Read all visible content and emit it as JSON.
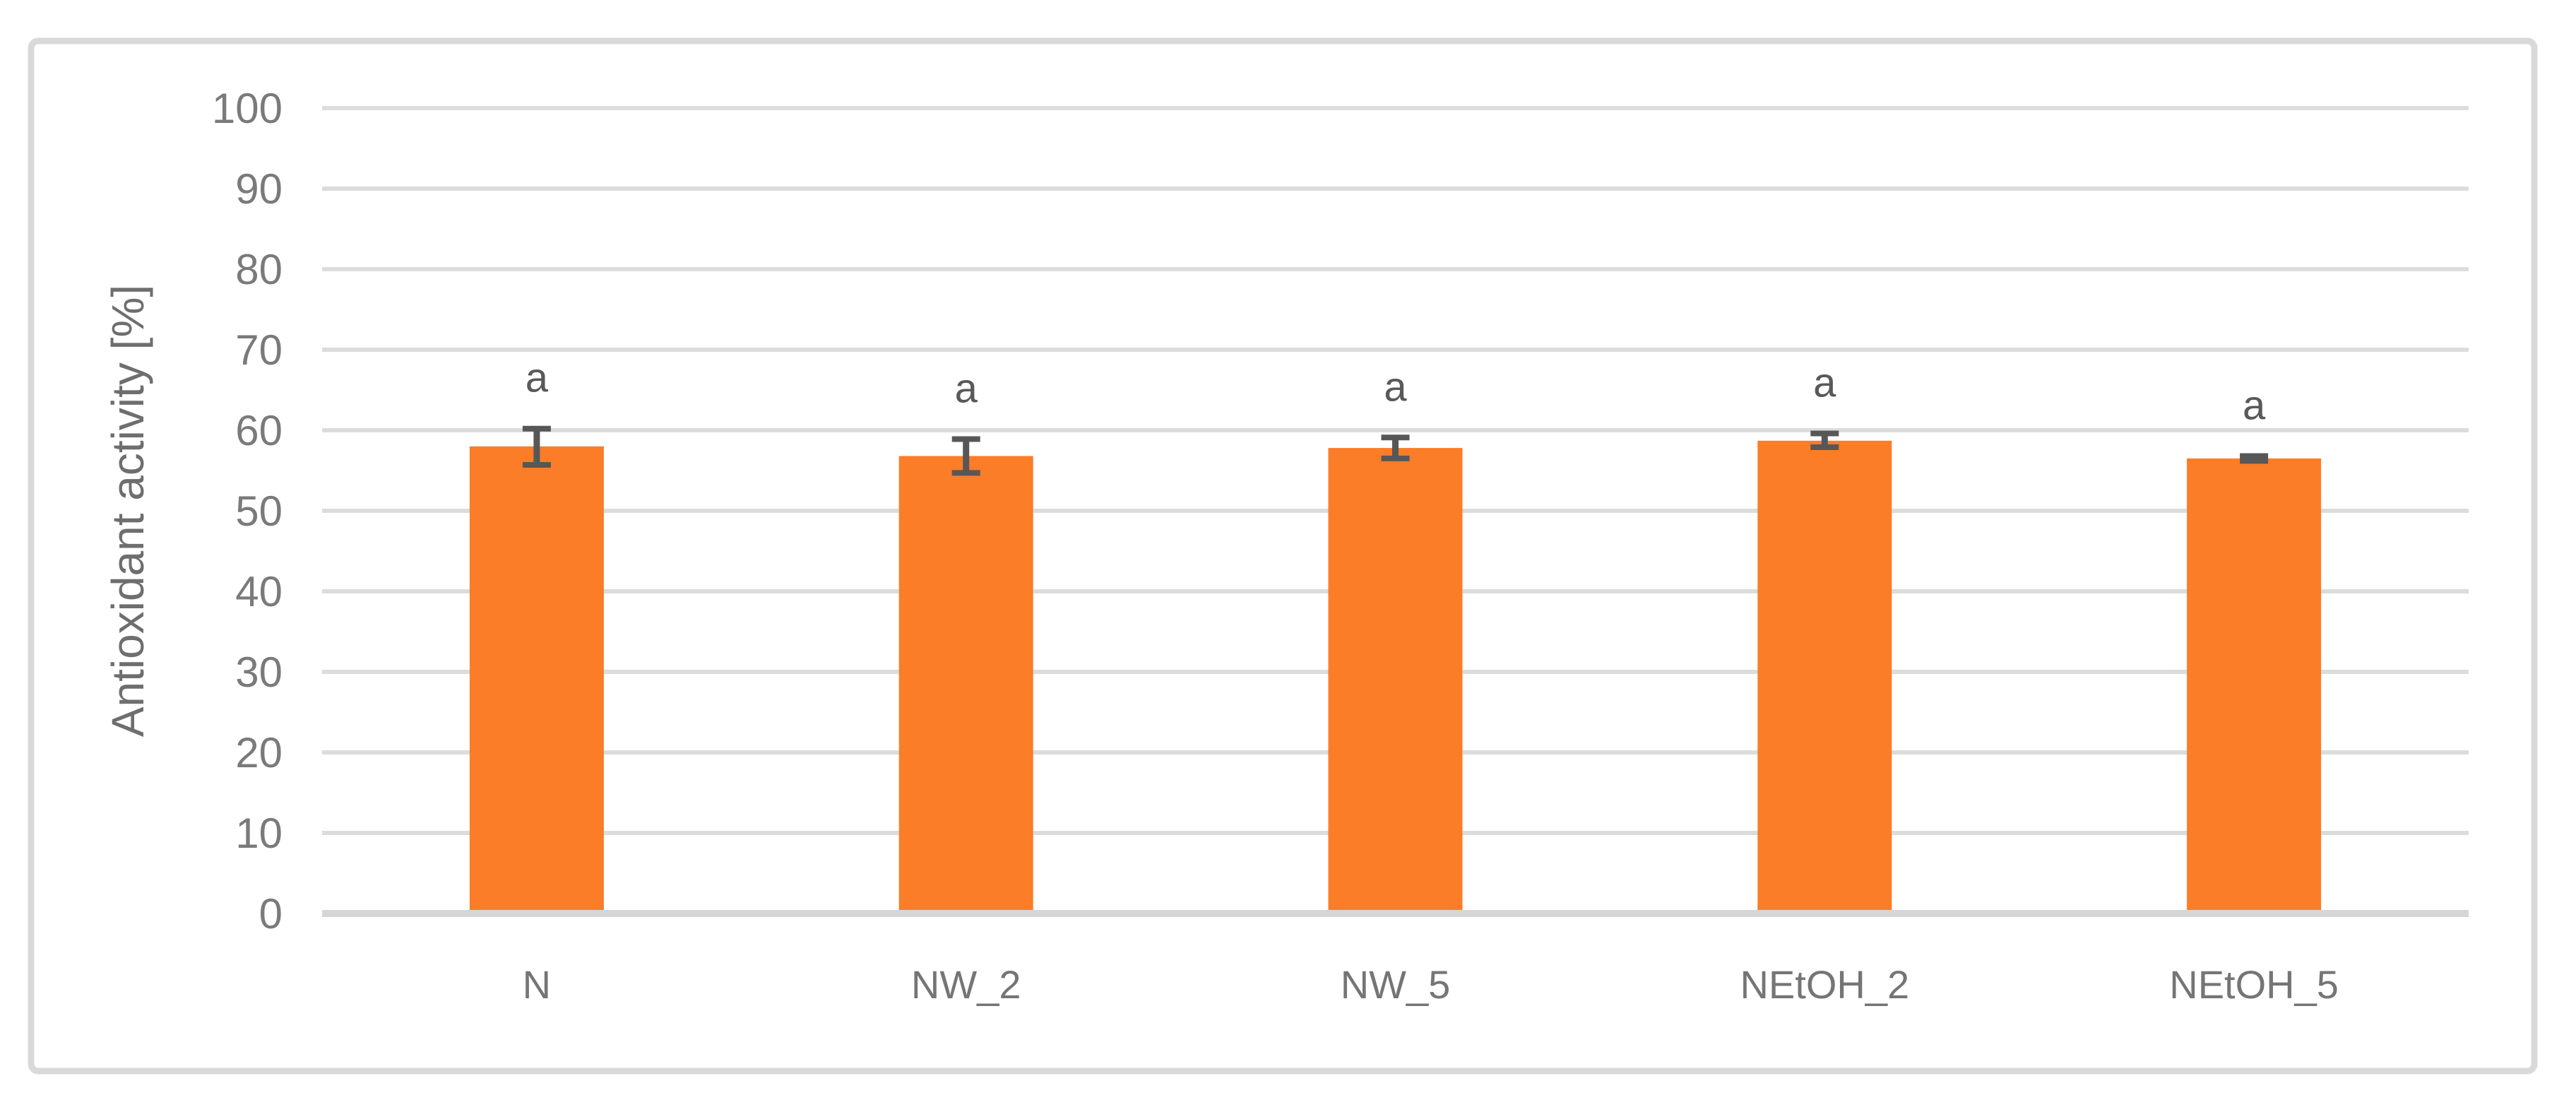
{
  "figure": {
    "background_color": "#FFFFFF",
    "border_color": "#D9D9D9"
  },
  "chart_data": {
    "type": "bar",
    "title": "",
    "xlabel": "",
    "ylabel": "Antioxidant activity [%]",
    "categories": [
      "N",
      "NW_2",
      "NW_5",
      "NEtOH_2",
      "NEtOH_5"
    ],
    "values": [
      58.0,
      56.8,
      57.8,
      58.7,
      56.5
    ],
    "error_bars": {
      "plus": [
        2.2,
        2.1,
        1.3,
        0.9,
        0.3
      ],
      "minus": [
        2.3,
        2.1,
        1.3,
        0.8,
        0.3
      ]
    },
    "significance_labels": [
      "a",
      "a",
      "a",
      "a",
      "a"
    ],
    "ylim": [
      0,
      100
    ],
    "ytick_step": 10,
    "ytick_labels": [
      "0",
      "10",
      "20",
      "30",
      "40",
      "50",
      "60",
      "70",
      "80",
      "90",
      "100"
    ],
    "grid": true,
    "legend": "none",
    "colors": {
      "bar": "#FB7D28",
      "gridline": "#DCDCDC",
      "axis_line": "#D6D6D6",
      "tick_text": "#7A7A7A",
      "category_text": "#757575",
      "axis_title_text": "#6E6E6E",
      "error_bar": "#575757",
      "annotation_text": "#595959"
    }
  }
}
